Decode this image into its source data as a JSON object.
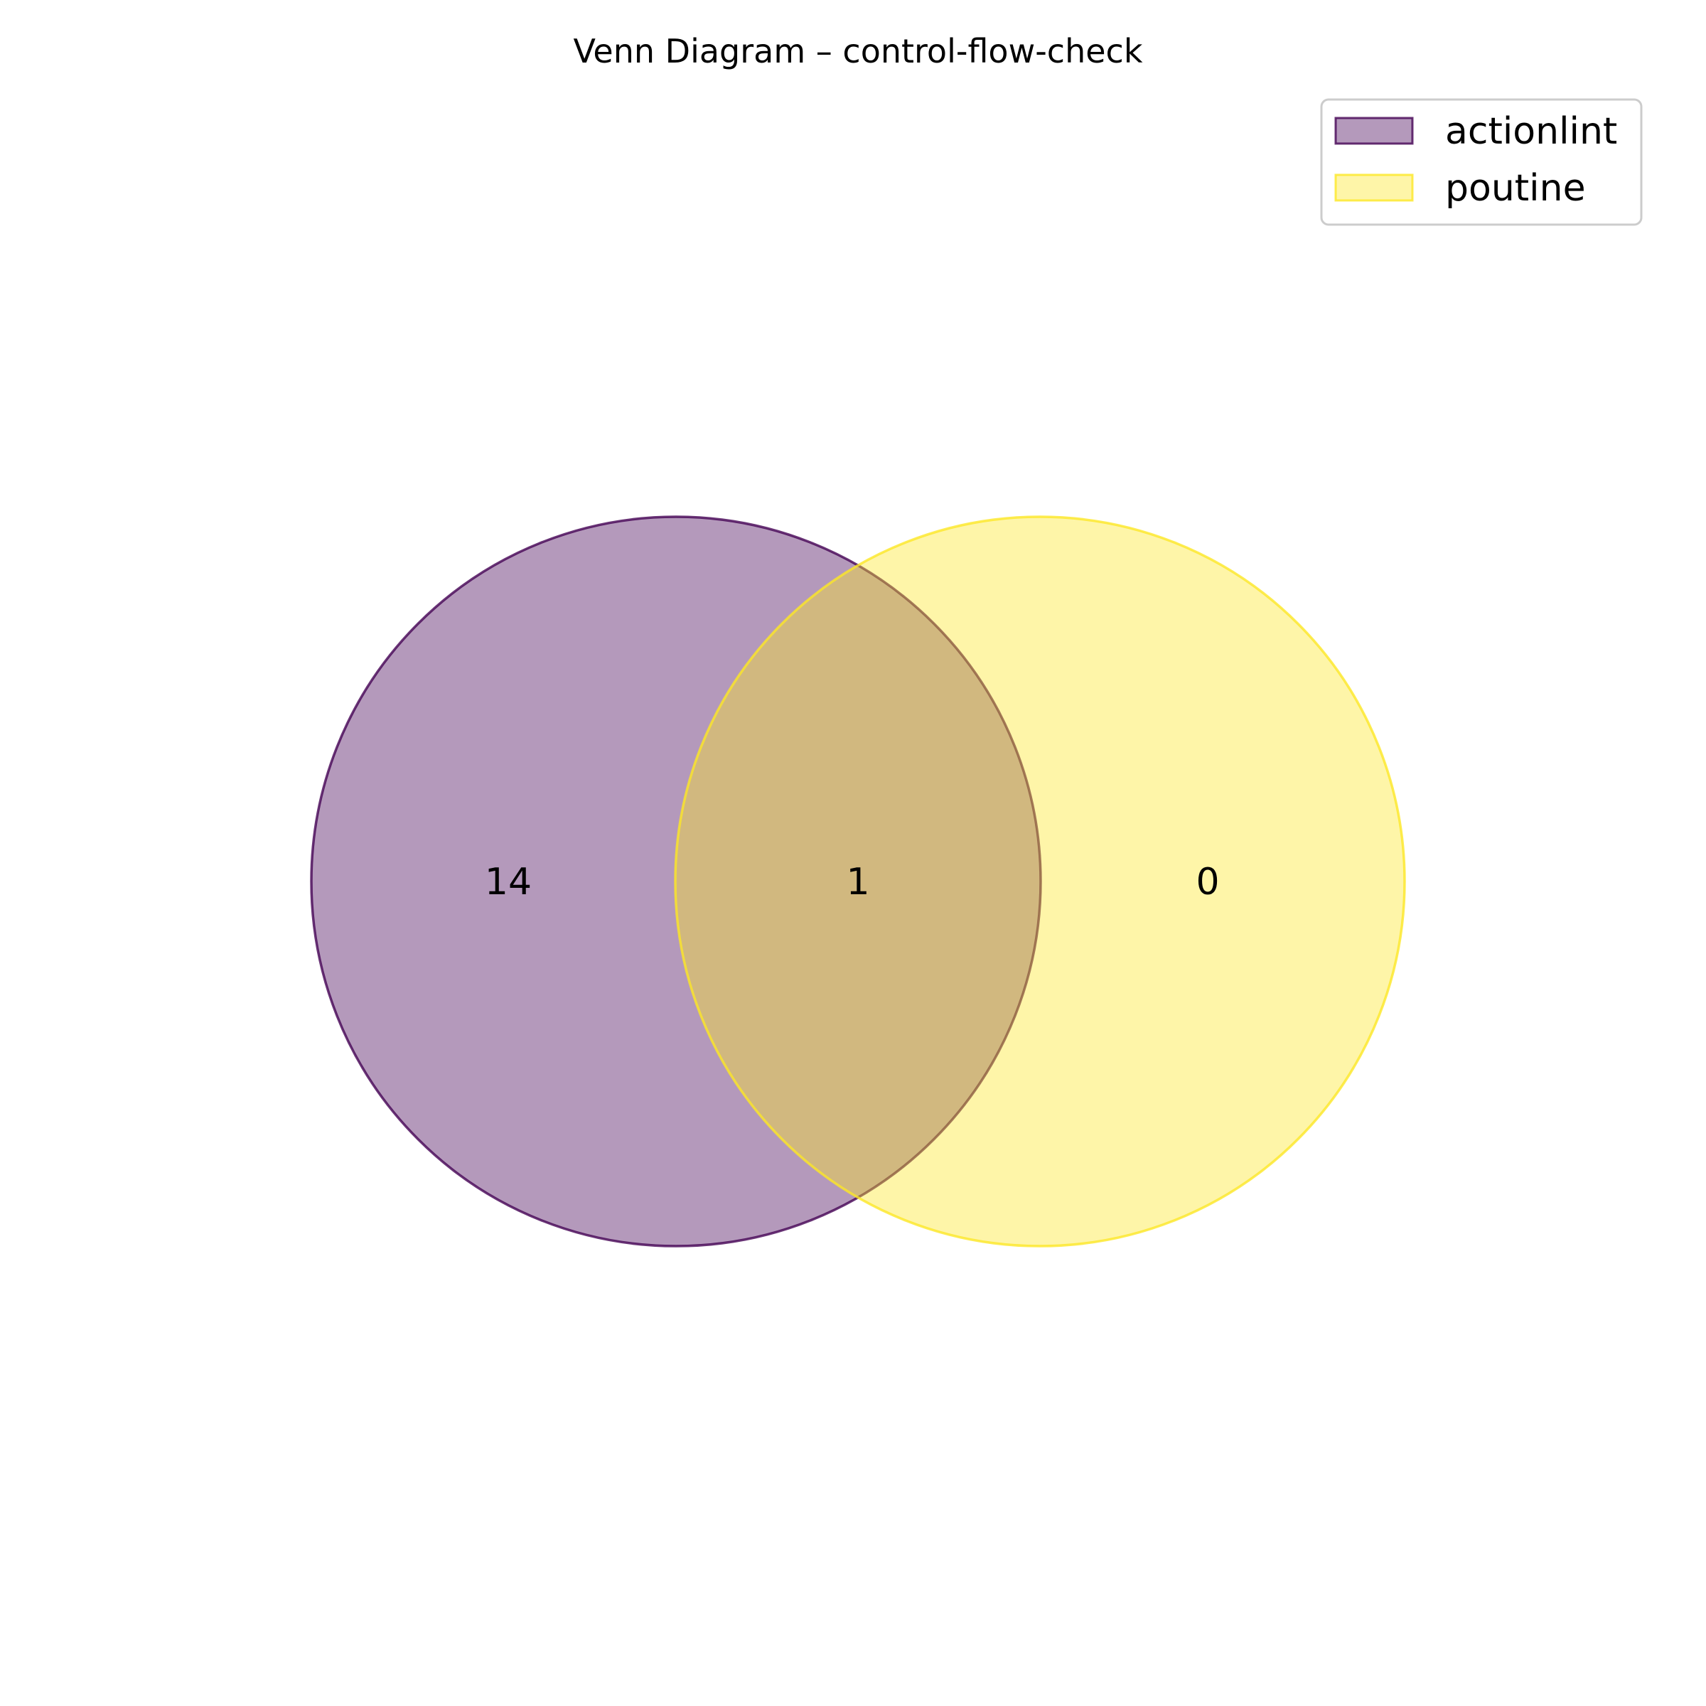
{
  "title": "Venn Diagram – control-flow-check",
  "sets": [
    {
      "name": "actionlint",
      "fill": "#440154",
      "edge": "#440154",
      "only_count": "14"
    },
    {
      "name": "poutine",
      "fill": "#fde725",
      "edge": "#fde725",
      "only_count": "0"
    }
  ],
  "intersection_count": "1",
  "legend": {
    "placement": "top-right",
    "entries": [
      "actionlint",
      "poutine"
    ]
  }
}
